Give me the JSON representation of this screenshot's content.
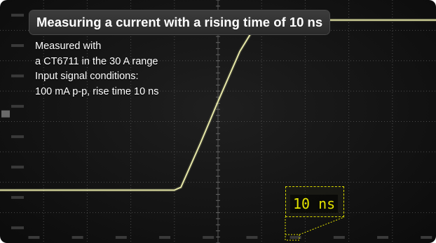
{
  "title": "Measuring a current with a rising time of 10 ns",
  "info_lines": [
    "Measured with",
    "a CT6711 in the 30 A range",
    "Input signal conditions:",
    "100 mA p-p, rise time 10 ns"
  ],
  "colors": {
    "trace": "#e6e8a8",
    "grid": "#4a4a4a",
    "annotation": "#e4e400"
  },
  "chart_data": {
    "type": "line",
    "title": "Measuring a current with a rising time of 10 ns",
    "annotation": "10 ns",
    "grid": true,
    "x_divisions": 10,
    "y_divisions": 8,
    "series": [
      {
        "x": [
          0,
          1,
          2,
          3,
          4,
          4.15,
          4.6,
          5.0,
          5.5,
          5.9,
          6.2,
          6.5,
          7,
          8,
          9,
          10
        ],
        "y": [
          1.85,
          1.85,
          1.85,
          1.85,
          1.85,
          1.95,
          3.5,
          4.95,
          6.7,
          7.7,
          7.85,
          7.82,
          7.8,
          7.8,
          7.8,
          7.8
        ]
      }
    ],
    "xlim": [
      0,
      10
    ],
    "ylim": [
      0,
      8.5
    ]
  }
}
